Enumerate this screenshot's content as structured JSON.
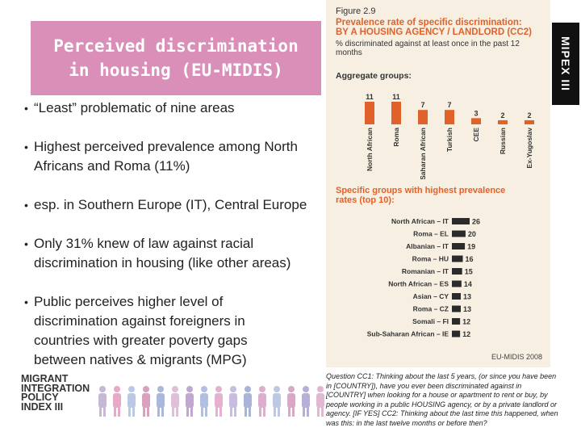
{
  "slide": {
    "title": "Perceived discrimination\nin housing (EU-MIDIS)",
    "bullets": [
      "“Least” problematic of nine areas",
      "Highest perceived prevalence among North Africans and Roma (11%)",
      "esp. in Southern Europe (IT), Central Europe",
      "Only 31% knew of law against racial discrimination in housing (like other areas)",
      "Public perceives higher level of discrimination against foreigners in countries with greater poverty gaps between natives & migrants (MPG)"
    ],
    "bullet_symbol": "•"
  },
  "figure": {
    "number": "Figure 2.9",
    "title": "Prevalence rate of specific discrimination:\nBY A HOUSING AGENCY / LANDLORD (CC2)",
    "subtitle": "% discriminated against at least once in the past 12 months",
    "aggregate_heading": "Aggregate groups:",
    "specific_heading": "Specific groups with highest prevalence\nrates (top 10):",
    "source": "EU-MIDIS 2008",
    "bar_color": "#e0622a",
    "bar_color_dark": "#2b2b2b"
  },
  "chart_data": [
    {
      "type": "bar",
      "title": "Aggregate groups:",
      "categories": [
        "North African",
        "Roma",
        "Sub-Saharan African",
        "Turkish",
        "CEE",
        "Russian",
        "Ex-Yugoslav"
      ],
      "values": [
        11,
        11,
        7,
        7,
        3,
        2,
        2
      ],
      "ylim": [
        0,
        11
      ]
    },
    {
      "type": "bar",
      "orientation": "horizontal",
      "title": "Specific groups with highest prevalence rates (top 10):",
      "categories": [
        "North African – IT",
        "Roma – EL",
        "Albanian – IT",
        "Roma – HU",
        "Romanian – IT",
        "North African – ES",
        "Asian – CY",
        "Roma – CZ",
        "Somali – FI",
        "Sub-Saharan African – IE"
      ],
      "values": [
        26,
        20,
        19,
        16,
        15,
        14,
        13,
        13,
        12,
        12
      ],
      "xlim": [
        0,
        26
      ]
    }
  ],
  "badge": {
    "text": "MIPEX III"
  },
  "question": "Question CC1: Thinking about the last 5 years, (or since you have been in [COUNTRY]), have you ever been discriminated against in [COUNTRY] when looking for a house or apartment to rent or buy, by people working in a public HOUSING agency, or by a private landlord or agency. [IF YES] CC2: Thinking about the last time this happened, when was this: in the last twelve months or before then?",
  "logo": {
    "text": "MIGRANT\nINTEGRATION\nPOLICY\nINDEX III",
    "figure_colors": [
      "#c7b8d6",
      "#e7a9c6",
      "#b9c9e6",
      "#d9a0c0",
      "#a9b8dc",
      "#e0c0d8",
      "#c0a8d0",
      "#b0c0e0",
      "#e6b0cf",
      "#c8bce0",
      "#a8b4d8",
      "#dcb0cc",
      "#bcc8e4",
      "#d8a8c8",
      "#b4b0d8",
      "#e0b8d4"
    ]
  }
}
